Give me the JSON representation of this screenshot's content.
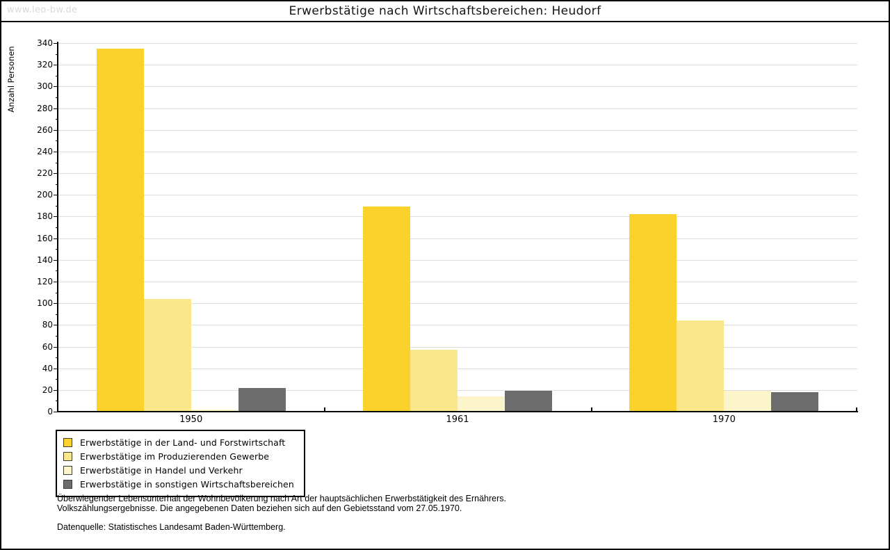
{
  "watermark": "www.leo-bw.de",
  "title": "Erwerbstätige nach Wirtschaftsbereichen: Heudorf",
  "footer": {
    "line1": "Überwiegender Lebensunterhalt der Wohnbevölkerung nach Art der hauptsächlichen Erwerbstätigkeit des Ernährers.",
    "line2": "Volkszählungsergebnisse. Die angegebenen Daten beziehen sich auf den Gebietsstand vom 27.05.1970.",
    "source": "Datenquelle: Statistisches Landesamt Baden-Württemberg."
  },
  "colors": {
    "grid": "#dcdcdc",
    "axis": "#000000",
    "watermark": "#d9d9d9",
    "background": "#ffffff"
  },
  "chart_data": {
    "type": "bar",
    "title": "Erwerbstätige nach Wirtschaftsbereichen: Heudorf",
    "xlabel": "",
    "ylabel": "Anzahl Personen",
    "categories": [
      "1950",
      "1961",
      "1970"
    ],
    "series": [
      {
        "name": "Erwerbstätige in der Land- und Forstwirtschaft",
        "color": "#FBD22C",
        "values": [
          335,
          189,
          182
        ]
      },
      {
        "name": "Erwerbstätige im Produzierenden Gewerbe",
        "color": "#FAE78C",
        "values": [
          104,
          57,
          84
        ]
      },
      {
        "name": "Erwerbstätige in Handel und Verkehr",
        "color": "#FCF4CA",
        "values": [
          2,
          14,
          19
        ]
      },
      {
        "name": "Erwerbstätige in sonstigen Wirtschaftsbereichen",
        "color": "#6C6C6C",
        "values": [
          22,
          19,
          18
        ]
      }
    ],
    "ylim": [
      0,
      340
    ],
    "ytick_step": 20,
    "yminor_step": 10,
    "grid": true,
    "legend_position": "bottom-left"
  }
}
